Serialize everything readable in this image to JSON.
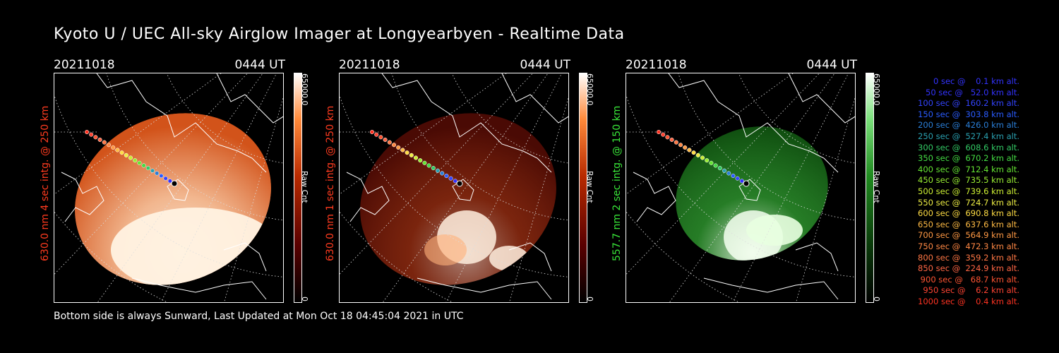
{
  "title": "Kyoto U / UEC All-sky Airglow Imager at Longyearbyen - Realtime Data",
  "footer": "Bottom side is always Sunward, Last Updated at Mon Oct 18 04:45:04 2021 in UTC",
  "colorbar": {
    "max_label": "65000.0",
    "mid_label": "Raw Cnt",
    "min_label": "0"
  },
  "panels": [
    {
      "date": "20211018",
      "time": "0444 UT",
      "ylabel": "630.0 nm 4 sec intg. @ 250 km",
      "label_color": "#ff3b1f",
      "colormap": "red",
      "brightness": "high"
    },
    {
      "date": "20211018",
      "time": "0444 UT",
      "ylabel": "630.0 nm 1 sec intg. @ 250 km",
      "label_color": "#ff3b1f",
      "colormap": "red",
      "brightness": "low"
    },
    {
      "date": "20211018",
      "time": "0444 UT",
      "ylabel": "557.7 nm 2 sec intg. @ 150 km",
      "label_color": "#39e639",
      "colormap": "green",
      "brightness": "medium"
    }
  ],
  "legend": [
    {
      "text": "   0 sec @    0.1 km alt.",
      "color": "#3333ff"
    },
    {
      "text": "  50 sec @   52.0 km alt.",
      "color": "#3333ff"
    },
    {
      "text": " 100 sec @  160.2 km alt.",
      "color": "#3344ff"
    },
    {
      "text": " 150 sec @  303.8 km alt.",
      "color": "#2a5cff"
    },
    {
      "text": " 200 sec @  426.0 km alt.",
      "color": "#2a7fd8"
    },
    {
      "text": " 250 sec @  527.4 km alt.",
      "color": "#2aa0b0"
    },
    {
      "text": " 300 sec @  608.6 km alt.",
      "color": "#33cc66"
    },
    {
      "text": " 350 sec @  670.2 km alt.",
      "color": "#44dd44"
    },
    {
      "text": " 400 sec @  712.4 km alt.",
      "color": "#66e633"
    },
    {
      "text": " 450 sec @  735.5 km alt.",
      "color": "#99ee33"
    },
    {
      "text": " 500 sec @  739.6 km alt.",
      "color": "#ccee33"
    },
    {
      "text": " 550 sec @  724.7 km alt.",
      "color": "#eeee44"
    },
    {
      "text": " 600 sec @  690.8 km alt.",
      "color": "#ffdd44"
    },
    {
      "text": " 650 sec @  637.6 km alt.",
      "color": "#ffbb44"
    },
    {
      "text": " 700 sec @  564.9 km alt.",
      "color": "#ff9944"
    },
    {
      "text": " 750 sec @  472.3 km alt.",
      "color": "#ff8844"
    },
    {
      "text": " 800 sec @  359.2 km alt.",
      "color": "#ff7744"
    },
    {
      "text": " 850 sec @  224.9 km alt.",
      "color": "#ff6644"
    },
    {
      "text": " 900 sec @   68.7 km alt.",
      "color": "#ff5533"
    },
    {
      "text": " 950 sec @    6.2 km alt.",
      "color": "#ff4433"
    },
    {
      "text": "1000 sec @    0.4 km alt.",
      "color": "#ff3322"
    }
  ]
}
